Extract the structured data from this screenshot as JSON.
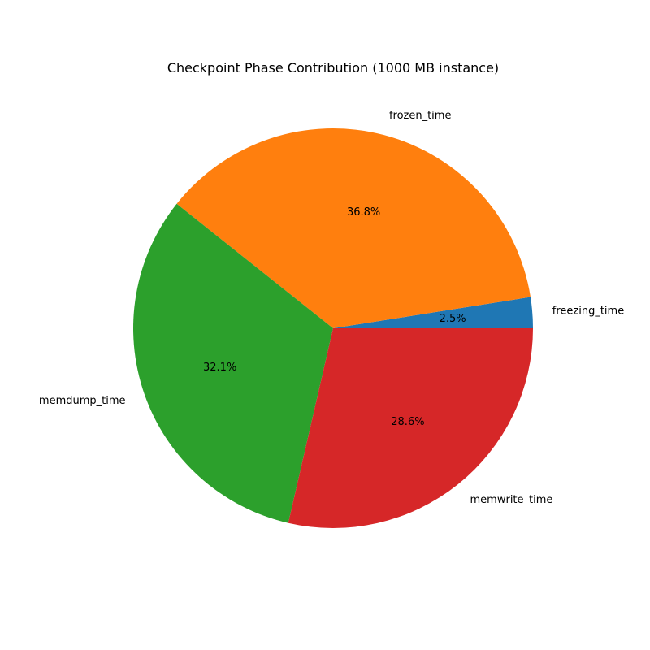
{
  "chart_data": {
    "type": "pie",
    "title": "Checkpoint Phase Contribution (1000 MB instance)",
    "start_angle_deg": 0,
    "direction": "counterclockwise",
    "slices": [
      {
        "label": "freezing_time",
        "value": 2.5,
        "pct_label": "2.5%",
        "color": "#1f77b4"
      },
      {
        "label": "frozen_time",
        "value": 36.8,
        "pct_label": "36.8%",
        "color": "#ff7f0e"
      },
      {
        "label": "memdump_time",
        "value": 32.1,
        "pct_label": "32.1%",
        "color": "#2ca02c"
      },
      {
        "label": "memwrite_time",
        "value": 28.6,
        "pct_label": "28.6%",
        "color": "#d62728"
      }
    ]
  }
}
